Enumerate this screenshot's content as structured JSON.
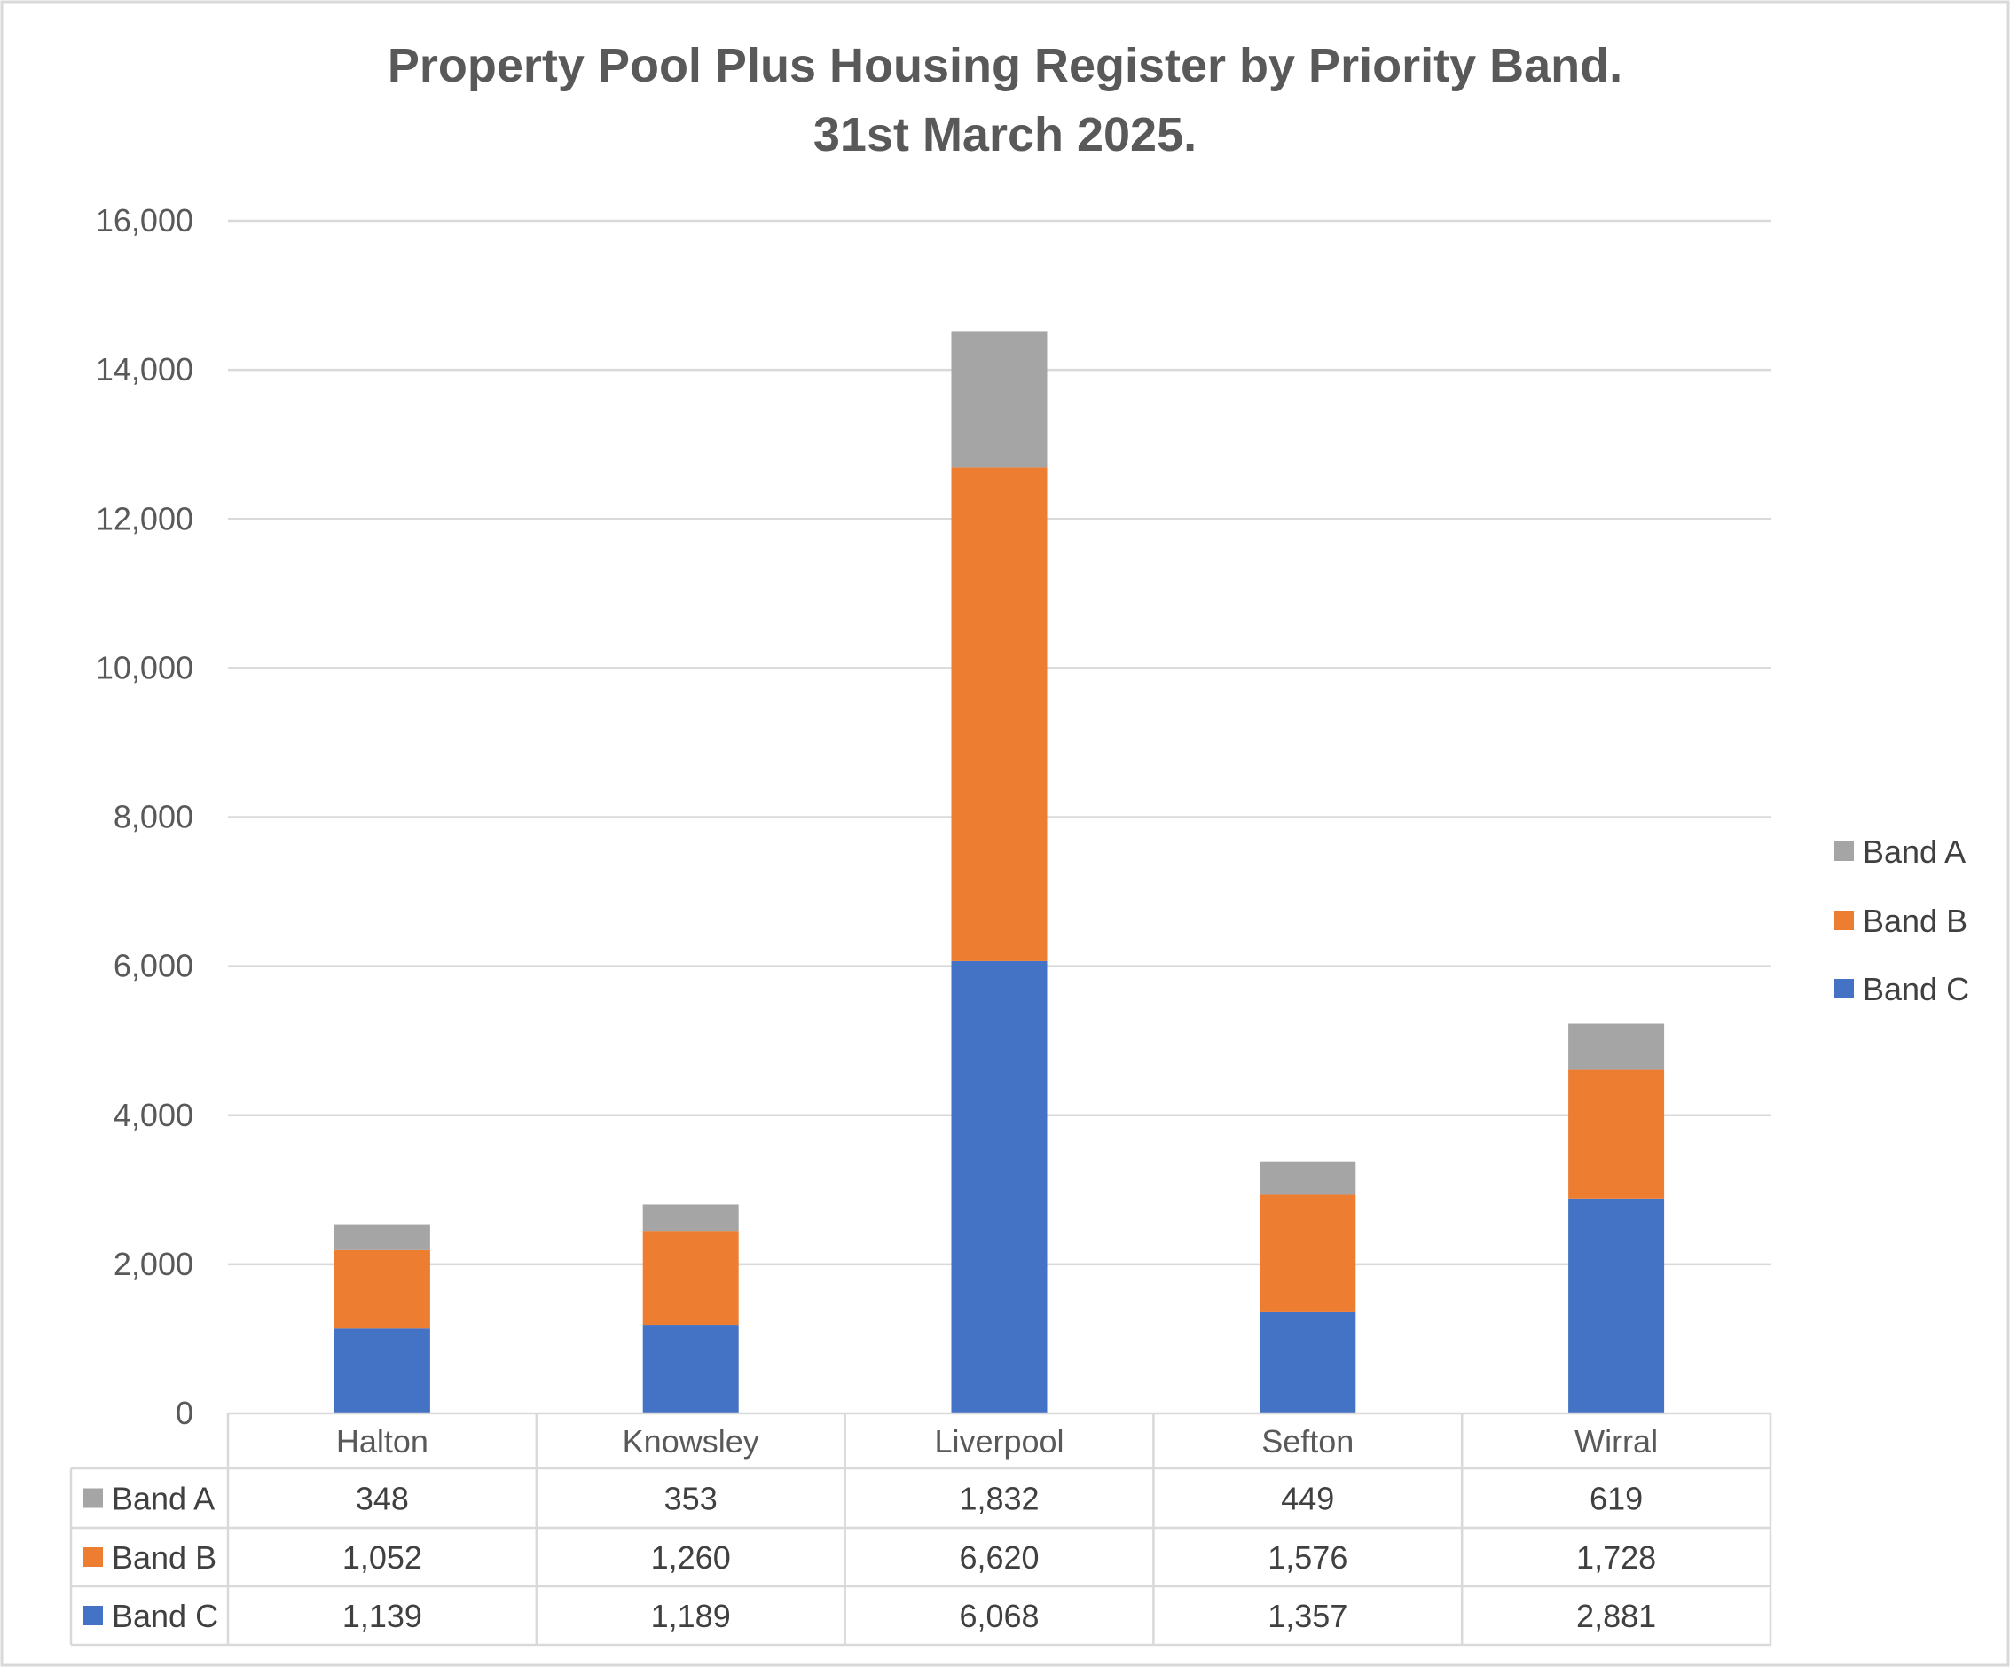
{
  "chart_data": {
    "type": "bar",
    "stacked": true,
    "title_lines": [
      "Property Pool Plus Housing Register by Priority Band.",
      "31st March 2025."
    ],
    "categories": [
      "Halton",
      "Knowsley",
      "Liverpool",
      "Sefton",
      "Wirral"
    ],
    "series": [
      {
        "name": "Band C",
        "values": [
          1139,
          1189,
          6068,
          1357,
          2881
        ],
        "display": [
          "1,139",
          "1,189",
          "6,068",
          "1,357",
          "2,881"
        ],
        "color": "#4472C4"
      },
      {
        "name": "Band B",
        "values": [
          1052,
          1260,
          6620,
          1576,
          1728
        ],
        "display": [
          "1,052",
          "1,260",
          "6,620",
          "1,576",
          "1,728"
        ],
        "color": "#ED7D31"
      },
      {
        "name": "Band A",
        "values": [
          348,
          353,
          1832,
          449,
          619
        ],
        "display": [
          "348",
          "353",
          "1,832",
          "449",
          "619"
        ],
        "color": "#A5A5A5"
      }
    ],
    "ylim": [
      0,
      16000
    ],
    "yticks": [
      0,
      2000,
      4000,
      6000,
      8000,
      10000,
      12000,
      14000,
      16000
    ],
    "ytick_labels": [
      "0",
      "2,000",
      "4,000",
      "6,000",
      "8,000",
      "10,000",
      "12,000",
      "14,000",
      "16,000"
    ],
    "grid": true,
    "legend_position": "right",
    "legend_order": [
      "Band A",
      "Band B",
      "Band C"
    ],
    "data_table": true,
    "table_row_order": [
      "Band A",
      "Band B",
      "Band C"
    ],
    "gridline_color": "#D9D9D9",
    "border_color": "#D9D9D9"
  }
}
